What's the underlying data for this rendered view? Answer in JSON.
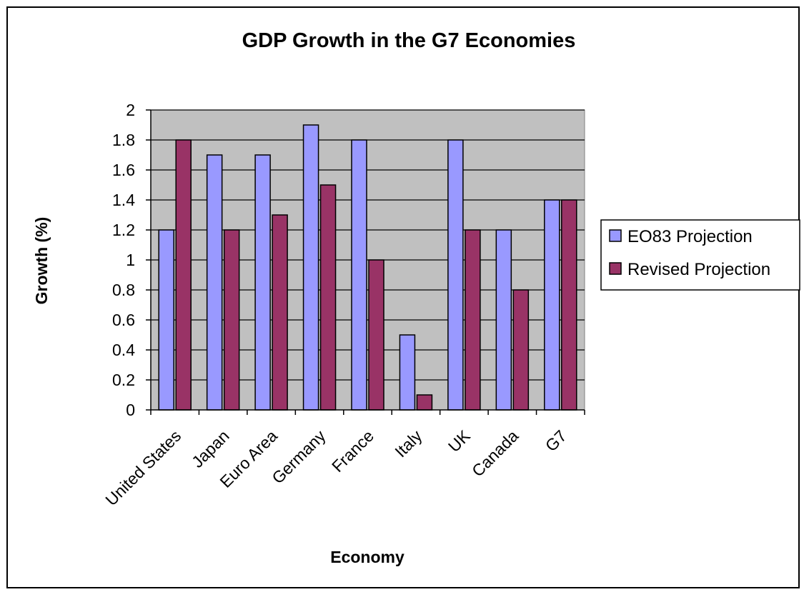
{
  "chart_data": {
    "type": "bar",
    "title": "GDP Growth in the G7 Economies",
    "xlabel": "Economy",
    "ylabel": "Growth (%)",
    "categories": [
      "United States",
      "Japan",
      "Euro Area",
      "Germany",
      "France",
      "Italy",
      "UK",
      "Canada",
      "G7"
    ],
    "series": [
      {
        "name": "EO83 Projection",
        "color": "#9999ff",
        "values": [
          1.2,
          1.7,
          1.7,
          1.9,
          1.8,
          0.5,
          1.8,
          1.2,
          1.4
        ]
      },
      {
        "name": "Revised Projection",
        "color": "#993366",
        "values": [
          1.8,
          1.2,
          1.3,
          1.5,
          1.0,
          0.1,
          1.2,
          0.8,
          1.4
        ]
      }
    ],
    "ylim": [
      0,
      2
    ],
    "yticks": [
      "0",
      "0.2",
      "0.4",
      "0.6",
      "0.8",
      "1",
      "1.2",
      "1.4",
      "1.6",
      "1.8",
      "2"
    ],
    "grid": true,
    "plot_background": "#c0c0c0",
    "legend_position": "right"
  }
}
